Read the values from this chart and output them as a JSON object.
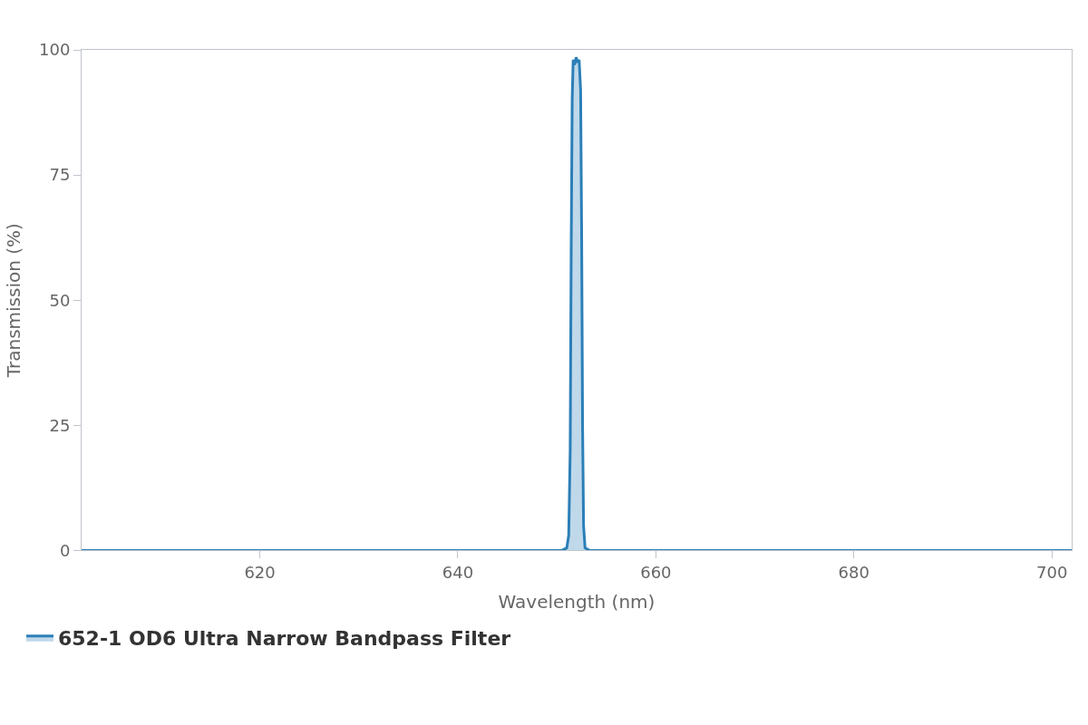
{
  "chart_data": {
    "type": "area",
    "xlabel": "Wavelength (nm)",
    "ylabel": "Transmission (%)",
    "xlim": [
      602,
      702
    ],
    "xticks": [
      620,
      640,
      660,
      680,
      700
    ],
    "ylim": [
      0,
      100
    ],
    "yticks": [
      0,
      25,
      50,
      75,
      100
    ],
    "legend": "bottom left",
    "series": [
      {
        "name": "652-1 OD6 Ultra Narrow Bandpass Filter",
        "color": "#2b7fb8",
        "x": [
          602,
          650.5,
          651.0,
          651.2,
          651.35,
          651.45,
          651.55,
          651.65,
          651.8,
          651.95,
          652.1,
          652.25,
          652.4,
          652.5,
          652.6,
          652.7,
          652.85,
          653.3,
          702
        ],
        "values": [
          0,
          0,
          0.5,
          3,
          20,
          60,
          90,
          98,
          97,
          98.5,
          97.5,
          98,
          92,
          65,
          25,
          5,
          0.5,
          0,
          0
        ]
      }
    ]
  }
}
